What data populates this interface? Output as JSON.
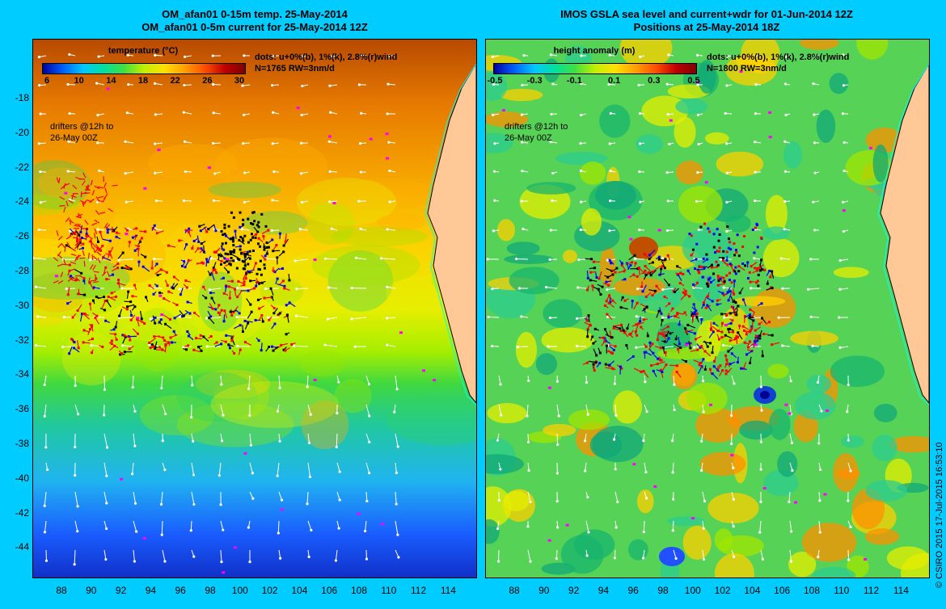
{
  "left_panel": {
    "title_line1": "OM_afan01 0-15m temp. 25-May-2014",
    "title_line2": "OM_afan01 0-5m current for 25-May-2014 12Z",
    "colorbar_title": "temperature (°C)",
    "colorbar_ticks": [
      "6",
      "10",
      "14",
      "18",
      "22",
      "26",
      "30"
    ],
    "dots_legend": "dots: u+0%(b), 1%(k), 2.8%(r)wind",
    "count_line": "N=1765  RW=3nm/d",
    "drifters_line1": "drifters @12h to",
    "drifters_line2": "26-May 00Z"
  },
  "right_panel": {
    "title_line1": "IMOS GSLA sea level and current+wdr for 01-Jun-2014 12Z",
    "title_line2": "Positions at 25-May-2014 18Z",
    "colorbar_title": "height anomaly (m)",
    "colorbar_ticks": [
      "-0.5",
      "-0.3",
      "-0.1",
      "0.1",
      "0.3",
      "0.5"
    ],
    "dots_legend": "dots: u+0%(b), 1%(k), 2.8%(r)wind",
    "count_line": "N=1800  RW=3nm/d",
    "drifters_line1": "drifters @12h to",
    "drifters_line2": "26-May 00Z"
  },
  "lat_ticks": [
    "-18",
    "-20",
    "-22",
    "-24",
    "-26",
    "-28",
    "-30",
    "-32",
    "-34",
    "-36",
    "-38",
    "-40",
    "-42",
    "-44"
  ],
  "lon_ticks": [
    "88",
    "90",
    "92",
    "94",
    "96",
    "98",
    "100",
    "102",
    "104",
    "106",
    "108",
    "110",
    "112",
    "114"
  ],
  "credit": "© CSIRO 2015   17-Jul-2015 16:53:10",
  "colors": {
    "background": "#00ccff",
    "land": "#ffc896",
    "coast": "#00ffff",
    "drifter_red": "#ff0000",
    "drifter_blue": "#0000ff",
    "drifter_black": "#000000",
    "buoy_magenta": "#ff00ff",
    "current_arrows": "#ffffff"
  }
}
